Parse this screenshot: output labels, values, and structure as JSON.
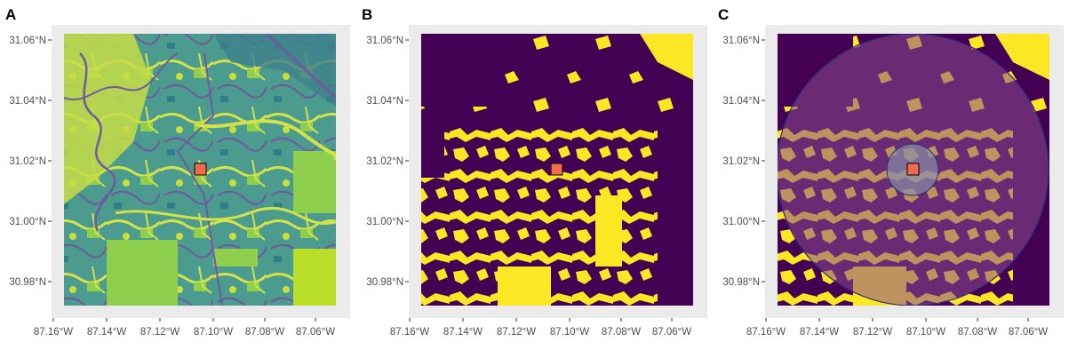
{
  "panels": [
    {
      "id": "A",
      "letter": "A",
      "layer": "land-cover-classes"
    },
    {
      "id": "B",
      "letter": "B",
      "layer": "binary-habitat"
    },
    {
      "id": "C",
      "letter": "C",
      "layer": "binary-habitat-with-buffers"
    }
  ],
  "axes": {
    "y_ticks": [
      "31.06°N",
      "31.04°N",
      "31.02°N",
      "31.00°N",
      "30.98°N"
    ],
    "x_ticks": [
      "87.16°W",
      "87.14°W",
      "87.12°W",
      "87.10°W",
      "87.08°W",
      "87.06°W"
    ]
  },
  "colors": {
    "background": "#ebebeb",
    "viridis_purple": "#440154",
    "viridis_yellow": "#fde725",
    "teal": "#3b8c8c",
    "green": "#35b779",
    "lime": "#b8de29",
    "site_marker": "#f26b4f",
    "buffer_fill": "#8a4f8e",
    "buffer_stroke": "#2a2a7a"
  },
  "site_marker": {
    "symbol": "square",
    "color": "#f26b4f"
  }
}
